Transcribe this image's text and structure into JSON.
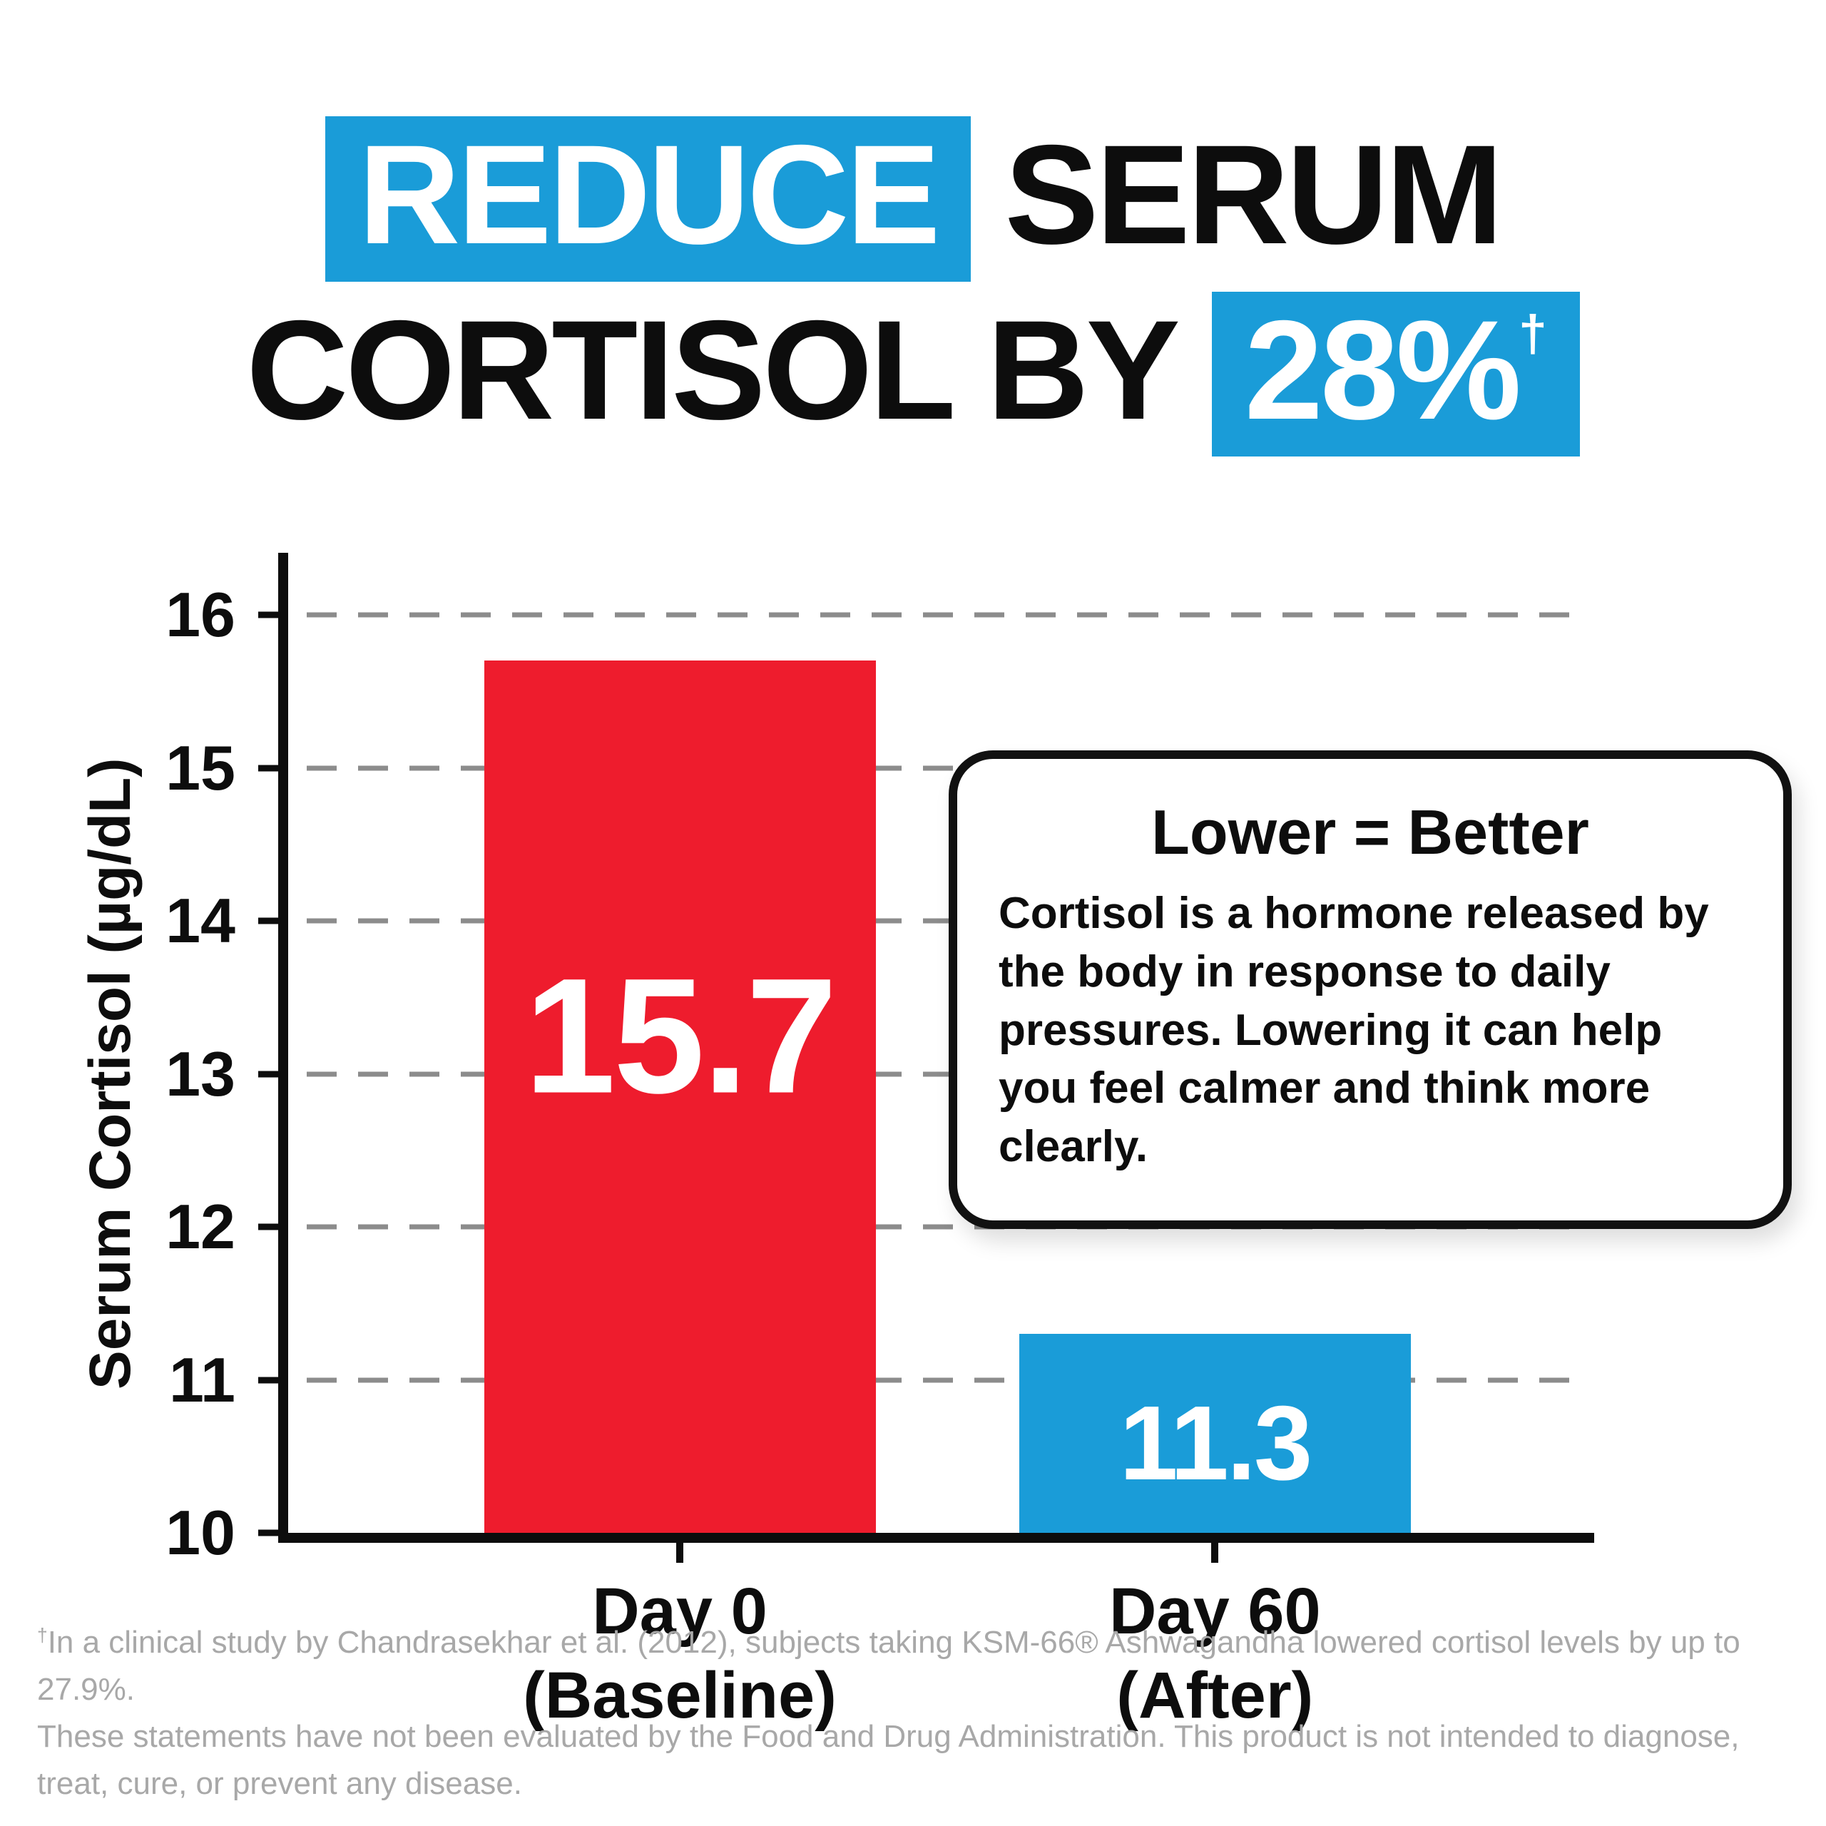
{
  "title": {
    "line1": {
      "highlight": "REDUCE",
      "rest": "SERUM"
    },
    "line2": {
      "rest": "CORTISOL BY",
      "highlight": "28%",
      "footnote_marker": "†"
    }
  },
  "callout": {
    "heading": "Lower = Better",
    "body": "Cortisol is a hormone released by the body in response to daily pressures. Lowering it can help you feel calmer and think more clearly."
  },
  "chart_data": {
    "type": "bar",
    "title": "Reduce Serum Cortisol by 28%",
    "categories": [
      "Day 0 (Baseline)",
      "Day 60 (After)"
    ],
    "x_labels": [
      {
        "label": "Day 0",
        "sublabel": "(Baseline)"
      },
      {
        "label": "Day 60",
        "sublabel": "(After)"
      }
    ],
    "values": [
      15.7,
      11.3
    ],
    "value_labels": [
      "15.7",
      "11.3"
    ],
    "bar_colors": [
      "#ee1c2d",
      "#1a9cd8"
    ],
    "ylabel": "Serum Cortisol (µg/dL)",
    "ylim": [
      10,
      16
    ],
    "yticks": [
      10,
      11,
      12,
      13,
      14,
      15,
      16
    ],
    "grid": "dashed horizontal gridlines at each integer tick",
    "legend": "none"
  },
  "footnote": {
    "marker": "†",
    "line1": "In a clinical study by Chandrasekhar et al. (2012), subjects taking KSM-66® Ashwagandha lowered cortisol levels by up to 27.9%.",
    "line2": "These statements have not been evaluated by the Food and Drug Administration. This product is not intended to diagnose, treat, cure, or prevent any disease."
  },
  "colors": {
    "accent_blue": "#1a9cd8",
    "bar_red": "#ee1c2d",
    "gridline_gray": "#8c8c8c",
    "footnote_gray": "#a8a8a8",
    "text_black": "#0d0d0d"
  }
}
